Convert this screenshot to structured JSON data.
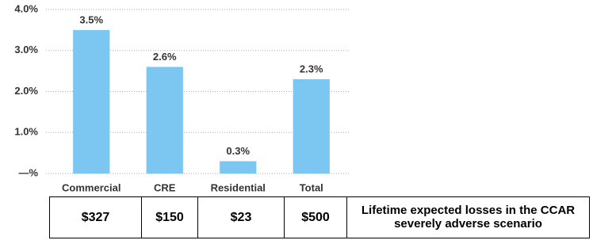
{
  "chart_data": {
    "type": "bar",
    "categories": [
      "Commercial",
      "CRE",
      "Residential",
      "Total"
    ],
    "values": [
      3.5,
      2.6,
      0.3,
      2.3
    ],
    "value_labels": [
      "3.5%",
      "2.6%",
      "0.3%",
      "2.3%"
    ],
    "color": "#7cc6f2",
    "ylim": [
      0,
      4
    ],
    "yticks": [
      {
        "value": 0,
        "label": "—%"
      },
      {
        "value": 1,
        "label": "1.0%"
      },
      {
        "value": 2,
        "label": "2.0%"
      },
      {
        "value": 3,
        "label": "3.0%"
      },
      {
        "value": 4,
        "label": "4.0%"
      }
    ],
    "grid": true
  },
  "table": {
    "cells": [
      "$327",
      "$150",
      "$23",
      "$500"
    ],
    "caption": "Lifetime expected losses in the CCAR severely adverse scenario"
  }
}
